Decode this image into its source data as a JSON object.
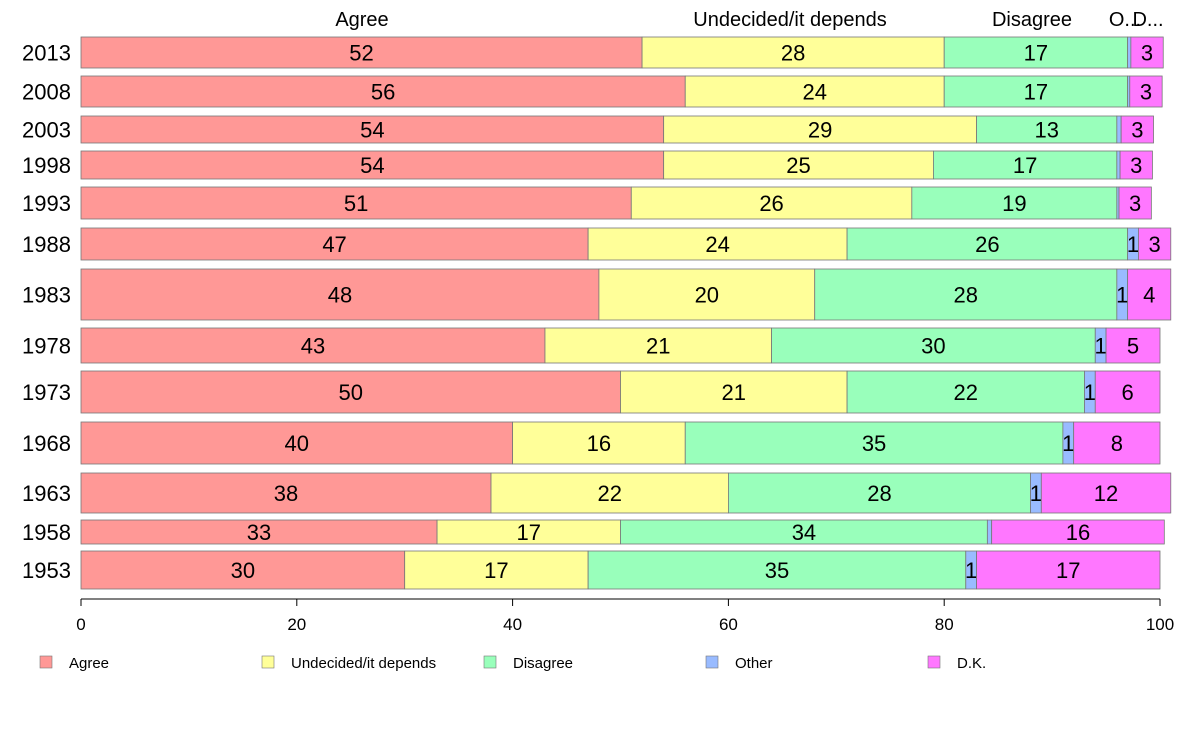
{
  "chart_data": {
    "type": "bar",
    "orientation": "horizontal",
    "stacked": true,
    "categories": [
      "2013",
      "2008",
      "2003",
      "1998",
      "1993",
      "1988",
      "1983",
      "1978",
      "1973",
      "1968",
      "1963",
      "1958",
      "1953"
    ],
    "series": [
      {
        "name": "Agree",
        "color": "#FF9896",
        "values": [
          52,
          56,
          54,
          54,
          51,
          47,
          48,
          43,
          50,
          40,
          38,
          33,
          30
        ]
      },
      {
        "name": "Undecided/it depends",
        "color": "#FFFF99",
        "values": [
          28,
          24,
          29,
          25,
          26,
          24,
          20,
          21,
          21,
          16,
          22,
          17,
          17
        ]
      },
      {
        "name": "Disagree",
        "color": "#99FFBB",
        "values": [
          17,
          17,
          13,
          17,
          19,
          26,
          28,
          30,
          22,
          35,
          28,
          34,
          35
        ]
      },
      {
        "name": "Other",
        "color": "#99BBFF",
        "values": [
          0.3,
          0.2,
          0.4,
          0.3,
          0.2,
          1,
          1,
          1,
          1,
          1,
          1,
          0.4,
          1
        ]
      },
      {
        "name": "D.K.",
        "color": "#FF77FF",
        "values": [
          3,
          3,
          3,
          3,
          3,
          3,
          4,
          5,
          6,
          8,
          12,
          16,
          17
        ]
      }
    ],
    "segment_labels": [
      [
        "52",
        "28",
        "17",
        "",
        "3"
      ],
      [
        "56",
        "24",
        "17",
        "",
        "3"
      ],
      [
        "54",
        "29",
        "13",
        "",
        "3"
      ],
      [
        "54",
        "25",
        "17",
        "",
        "3"
      ],
      [
        "51",
        "26",
        "19",
        "",
        "3"
      ],
      [
        "47",
        "24",
        "26",
        "1",
        "3"
      ],
      [
        "48",
        "20",
        "28",
        "1",
        "4"
      ],
      [
        "43",
        "21",
        "30",
        "1",
        "5"
      ],
      [
        "50",
        "21",
        "22",
        "1",
        "6"
      ],
      [
        "40",
        "16",
        "35",
        "1",
        "8"
      ],
      [
        "38",
        "22",
        "28",
        "1",
        "12"
      ],
      [
        "33",
        "17",
        "34",
        "",
        "16"
      ],
      [
        "30",
        "17",
        "35",
        "1",
        "17"
      ]
    ],
    "column_headers": [
      "Agree",
      "Undecided/it depends",
      "Disagree",
      "O...",
      "D..."
    ],
    "xlim": [
      0,
      100
    ],
    "x_ticks": [
      0,
      20,
      40,
      60,
      80,
      100
    ],
    "grid": false,
    "legend": {
      "position": "bottom",
      "items": [
        "Agree",
        "Undecided/it depends",
        "Disagree",
        "Other",
        "D.K."
      ]
    }
  }
}
